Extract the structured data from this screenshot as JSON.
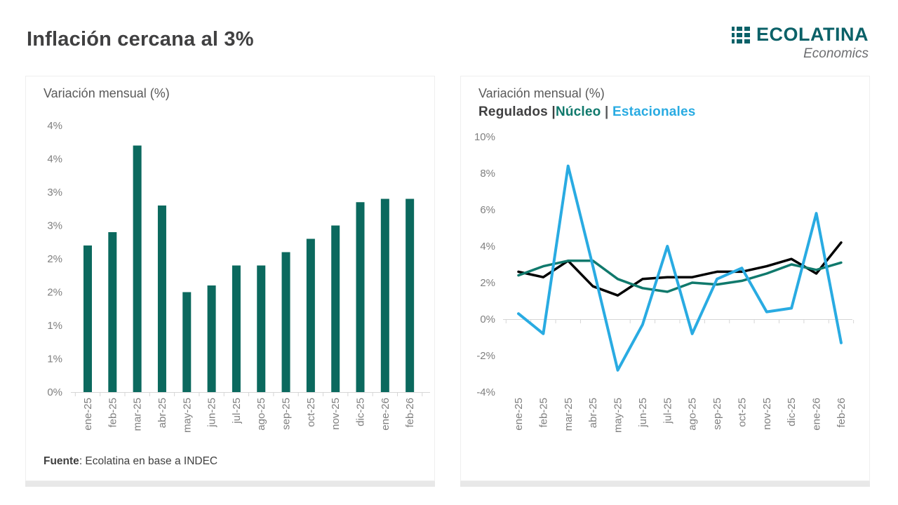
{
  "page": {
    "title": "Inflación cercana al 3%"
  },
  "logo": {
    "name": "ECOLATINA",
    "tagline": "Economics"
  },
  "colors": {
    "brand_teal": "#0b6168",
    "bar_teal": "#0b695e",
    "nucleo_teal": "#10796c",
    "estacionales_blue": "#29abe2",
    "regulados_dark": "#404041",
    "title_gray": "#595959",
    "axis_gray": "#7f7f7f"
  },
  "cards": {
    "left": {
      "title": "Variación mensual (%)",
      "source_label": "Fuente",
      "source_text": ": Ecolatina en base a INDEC"
    },
    "right": {
      "title": "Variación mensual (%)"
    }
  },
  "legend": {
    "parts": [
      {
        "text": "Regulados ",
        "color": "#404041"
      },
      {
        "text": "|",
        "color": "#404041"
      },
      {
        "text": "Núcleo",
        "color": "#10796c"
      },
      {
        "text": " | ",
        "color": "#58595b"
      },
      {
        "text": "Estacionales",
        "color": "#29abe2"
      }
    ]
  },
  "chart_data": [
    {
      "type": "bar",
      "title": "Variación mensual (%)",
      "categories": [
        "ene-25",
        "feb-25",
        "mar-25",
        "abr-25",
        "may-25",
        "jun-25",
        "jul-25",
        "ago-25",
        "sep-25",
        "oct-25",
        "nov-25",
        "dic-25",
        "ene-26",
        "feb-26"
      ],
      "values": [
        2.2,
        2.4,
        3.7,
        2.8,
        1.5,
        1.6,
        1.9,
        1.9,
        2.1,
        2.3,
        2.5,
        2.85,
        2.9,
        2.9
      ],
      "bar_color": "#0b695e",
      "xlabel": "",
      "ylabel": "",
      "ylim": [
        0,
        4
      ],
      "y_ticks": [
        0,
        0.5,
        1,
        1.5,
        2,
        2.5,
        3,
        3.5,
        4
      ],
      "y_tick_labels": [
        "0%",
        "1%",
        "1%",
        "2%",
        "2%",
        "3%",
        "3%",
        "4%",
        "4%"
      ],
      "grid": false
    },
    {
      "type": "line",
      "title": "Variación mensual (%)",
      "categories": [
        "ene-25",
        "feb-25",
        "mar-25",
        "abr-25",
        "may-25",
        "jun-25",
        "jul-25",
        "ago-25",
        "sep-25",
        "oct-25",
        "nov-25",
        "dic-25",
        "ene-26",
        "feb-26"
      ],
      "series": [
        {
          "name": "Regulados",
          "color": "#000000",
          "values": [
            2.6,
            2.3,
            3.2,
            1.8,
            1.3,
            2.2,
            2.3,
            2.3,
            2.6,
            2.6,
            2.9,
            3.3,
            2.5,
            4.2
          ]
        },
        {
          "name": "Núcleo",
          "color": "#10796c",
          "values": [
            2.4,
            2.9,
            3.2,
            3.2,
            2.2,
            1.7,
            1.5,
            2.0,
            1.9,
            2.1,
            2.5,
            3.0,
            2.7,
            3.1
          ]
        },
        {
          "name": "Estacionales",
          "color": "#29abe2",
          "values": [
            0.3,
            -0.8,
            8.4,
            2.9,
            -2.8,
            -0.3,
            4.0,
            -0.8,
            2.2,
            2.8,
            0.4,
            0.6,
            5.8,
            -1.3
          ]
        }
      ],
      "xlabel": "",
      "ylabel": "",
      "ylim": [
        -4,
        10
      ],
      "y_ticks": [
        -4,
        -2,
        0,
        2,
        4,
        6,
        8,
        10
      ],
      "y_tick_labels": [
        "-4%",
        "-2%",
        "0%",
        "2%",
        "4%",
        "6%",
        "8%",
        "10%"
      ],
      "grid": false,
      "legend_position": "top"
    }
  ]
}
